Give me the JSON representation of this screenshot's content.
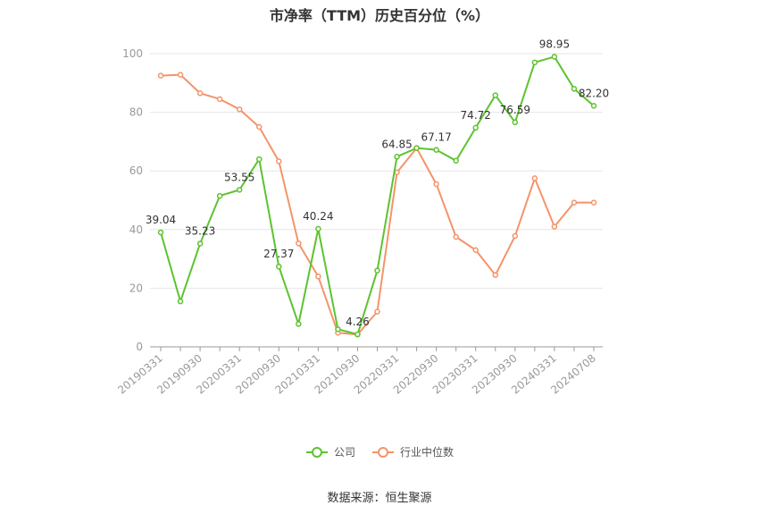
{
  "chart_data": {
    "type": "line",
    "title": "市净率（TTM）历史百分位（%）",
    "xlabel": "",
    "ylabel": "",
    "ylim": [
      0,
      100
    ],
    "yticks": [
      0,
      20,
      40,
      60,
      80,
      100
    ],
    "grid": true,
    "legend_position": "bottom",
    "x": [
      "20190331",
      "20190630",
      "20190930",
      "20191231",
      "20200331",
      "20200630",
      "20200930",
      "20201231",
      "20210331",
      "20210630",
      "20210930",
      "20211231",
      "20220331",
      "20220630",
      "20220930",
      "20221231",
      "20230331",
      "20230630",
      "20230930",
      "20231231",
      "20240331",
      "20240630",
      "20240708"
    ],
    "xtick_labels": [
      "20190331",
      "20190930",
      "20200331",
      "20200930",
      "20210331",
      "20210930",
      "20220331",
      "20220930",
      "20230331",
      "20230930",
      "20240331",
      "20240708"
    ],
    "series": [
      {
        "name": "公司",
        "color": "#5cc330",
        "values": [
          39.04,
          15.5,
          35.23,
          51.5,
          53.55,
          64.0,
          27.37,
          7.8,
          40.24,
          6.0,
          4.26,
          26.0,
          64.85,
          67.8,
          67.17,
          63.5,
          74.72,
          85.8,
          76.59,
          97.0,
          98.95,
          88.0,
          82.2
        ],
        "labels": [
          "39.04",
          "",
          "35.23",
          "",
          "53.55",
          "",
          "27.37",
          "",
          "40.24",
          "",
          "4.26",
          "",
          "64.85",
          "",
          "67.17",
          "",
          "74.72",
          "",
          "76.59",
          "",
          "98.95",
          "",
          "82.20"
        ]
      },
      {
        "name": "行业中位数",
        "color": "#f4946b",
        "values": [
          92.5,
          92.8,
          86.5,
          84.5,
          81.0,
          75.0,
          63.3,
          35.3,
          24.0,
          4.8,
          4.2,
          12.0,
          59.5,
          67.8,
          55.5,
          37.5,
          33.0,
          24.5,
          37.8,
          57.5,
          41.0,
          49.2,
          49.2
        ]
      }
    ]
  },
  "source": "数据来源：恒生聚源"
}
